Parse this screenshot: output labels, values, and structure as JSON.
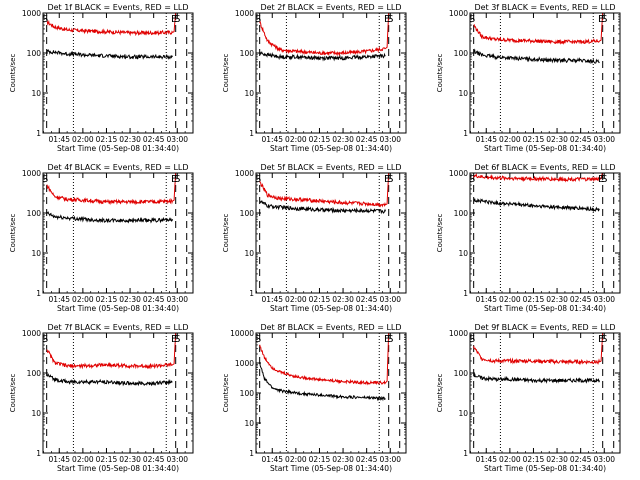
{
  "figure": {
    "ylabel": "Counts/sec",
    "xlabel": "Start Time (05-Sep-08 01:34:40)",
    "series_names": {
      "events": "Events",
      "lld": "LLD"
    },
    "colors": {
      "events": "#000000",
      "lld": "#e00000",
      "axis": "#000000",
      "background": "#ffffff"
    },
    "y_scale": "log",
    "grid": false
  },
  "chart_data": [
    {
      "type": "line",
      "title": "Det 1f BLACK = Events, RED = LLD",
      "xlim": [
        "01:34:40",
        "03:10:00"
      ],
      "ylim": [
        1,
        1000
      ],
      "x_ticks": [
        "01:45",
        "02:00",
        "02:15",
        "02:30",
        "02:45",
        "03:00"
      ],
      "y_ticks": [
        "1",
        "10",
        "100",
        "1000"
      ],
      "markers": {
        "dashed": [
          "01:37",
          "02:59",
          "03:06"
        ],
        "dotted": [
          "01:54",
          "02:53"
        ],
        "labels": [
          {
            "text": "S",
            "x": "01:36"
          },
          {
            "text": "E",
            "x": "02:58"
          },
          {
            "text": "S",
            "x": "03:00"
          }
        ]
      },
      "series": [
        {
          "name": "LLD",
          "color": "#e00000",
          "x": [
            "01:37",
            "01:42",
            "01:50",
            "02:00",
            "02:15",
            "02:30",
            "02:45",
            "02:57",
            "02:58",
            "02:59"
          ],
          "y": [
            600,
            450,
            380,
            360,
            340,
            320,
            320,
            330,
            340,
            1100
          ]
        },
        {
          "name": "Events",
          "color": "#000000",
          "x": [
            "01:37",
            "01:42",
            "01:50",
            "02:00",
            "02:15",
            "02:30",
            "02:45",
            "02:57"
          ],
          "y": [
            110,
            105,
            95,
            90,
            85,
            80,
            80,
            80
          ]
        }
      ]
    },
    {
      "type": "line",
      "title": "Det 2f BLACK = Events, RED = LLD",
      "xlim": [
        "01:34:40",
        "03:10:00"
      ],
      "ylim": [
        1,
        1000
      ],
      "x_ticks": [
        "01:45",
        "02:00",
        "02:15",
        "02:30",
        "02:45",
        "03:00"
      ],
      "y_ticks": [
        "1",
        "10",
        "100",
        "1000"
      ],
      "markers": {
        "dashed": [
          "01:37",
          "02:59",
          "03:06"
        ],
        "dotted": [
          "01:54",
          "02:53"
        ],
        "labels": [
          {
            "text": "S",
            "x": "01:36"
          },
          {
            "text": "E",
            "x": "02:58"
          },
          {
            "text": "S",
            "x": "03:00"
          }
        ]
      },
      "series": [
        {
          "name": "LLD",
          "color": "#e00000",
          "x": [
            "01:37",
            "01:42",
            "01:50",
            "02:00",
            "02:15",
            "02:30",
            "02:45",
            "02:57",
            "02:58",
            "02:59"
          ],
          "y": [
            600,
            200,
            120,
            110,
            100,
            100,
            110,
            130,
            140,
            1100
          ]
        },
        {
          "name": "Events",
          "color": "#000000",
          "x": [
            "01:37",
            "01:42",
            "01:50",
            "02:00",
            "02:15",
            "02:30",
            "02:45",
            "02:57"
          ],
          "y": [
            100,
            90,
            80,
            80,
            75,
            75,
            80,
            85
          ]
        }
      ]
    },
    {
      "type": "line",
      "title": "Det 3f BLACK = Events, RED = LLD",
      "xlim": [
        "01:34:40",
        "03:10:00"
      ],
      "ylim": [
        1,
        1000
      ],
      "x_ticks": [
        "01:45",
        "02:00",
        "02:15",
        "02:30",
        "02:45",
        "03:00"
      ],
      "y_ticks": [
        "1",
        "10",
        "100",
        "1000"
      ],
      "markers": {
        "dashed": [
          "01:37",
          "02:59",
          "03:06"
        ],
        "dotted": [
          "01:54",
          "02:53"
        ],
        "labels": [
          {
            "text": "S",
            "x": "01:36"
          },
          {
            "text": "E",
            "x": "02:58"
          },
          {
            "text": "S",
            "x": "03:00"
          }
        ]
      },
      "series": [
        {
          "name": "LLD",
          "color": "#e00000",
          "x": [
            "01:37",
            "01:42",
            "01:50",
            "02:00",
            "02:15",
            "02:30",
            "02:45",
            "02:57",
            "02:58",
            "02:59"
          ],
          "y": [
            500,
            260,
            220,
            210,
            200,
            190,
            190,
            200,
            210,
            1100
          ]
        },
        {
          "name": "Events",
          "color": "#000000",
          "x": [
            "01:37",
            "01:42",
            "01:50",
            "02:00",
            "02:15",
            "02:30",
            "02:45",
            "02:57"
          ],
          "y": [
            110,
            90,
            80,
            75,
            70,
            65,
            65,
            60
          ]
        }
      ]
    },
    {
      "type": "line",
      "title": "Det 4f BLACK = Events, RED = LLD",
      "xlim": [
        "01:34:40",
        "03:10:00"
      ],
      "ylim": [
        1,
        1000
      ],
      "x_ticks": [
        "01:45",
        "02:00",
        "02:15",
        "02:30",
        "02:45",
        "03:00"
      ],
      "y_ticks": [
        "1",
        "10",
        "100",
        "1000"
      ],
      "markers": {
        "dashed": [
          "01:37",
          "02:59",
          "03:06"
        ],
        "dotted": [
          "01:54",
          "02:53"
        ],
        "labels": [
          {
            "text": "S",
            "x": "01:36"
          },
          {
            "text": "E",
            "x": "02:58"
          },
          {
            "text": "S",
            "x": "03:00"
          }
        ]
      },
      "series": [
        {
          "name": "LLD",
          "color": "#e00000",
          "x": [
            "01:37",
            "01:42",
            "01:50",
            "02:00",
            "02:15",
            "02:30",
            "02:45",
            "02:57",
            "02:58",
            "02:59"
          ],
          "y": [
            500,
            260,
            220,
            210,
            190,
            190,
            190,
            200,
            210,
            1100
          ]
        },
        {
          "name": "Events",
          "color": "#000000",
          "x": [
            "01:37",
            "01:42",
            "01:50",
            "02:00",
            "02:15",
            "02:30",
            "02:45",
            "02:57"
          ],
          "y": [
            100,
            80,
            75,
            70,
            65,
            65,
            65,
            70
          ]
        }
      ]
    },
    {
      "type": "line",
      "title": "Det 5f BLACK = Events, RED = LLD",
      "xlim": [
        "01:34:40",
        "03:10:00"
      ],
      "ylim": [
        1,
        1000
      ],
      "x_ticks": [
        "01:45",
        "02:00",
        "02:15",
        "02:30",
        "02:45",
        "03:00"
      ],
      "y_ticks": [
        "1",
        "10",
        "100",
        "1000"
      ],
      "markers": {
        "dashed": [
          "01:37",
          "02:59",
          "03:06"
        ],
        "dotted": [
          "01:54",
          "02:53"
        ],
        "labels": [
          {
            "text": "S",
            "x": "01:36"
          },
          {
            "text": "E",
            "x": "02:58"
          },
          {
            "text": "S",
            "x": "03:00"
          }
        ]
      },
      "series": [
        {
          "name": "LLD",
          "color": "#e00000",
          "x": [
            "01:37",
            "01:42",
            "01:50",
            "02:00",
            "02:15",
            "02:30",
            "02:45",
            "02:57",
            "02:58",
            "02:59"
          ],
          "y": [
            600,
            280,
            230,
            220,
            200,
            180,
            170,
            160,
            170,
            1100
          ]
        },
        {
          "name": "Events",
          "color": "#000000",
          "x": [
            "01:37",
            "01:42",
            "01:50",
            "02:00",
            "02:15",
            "02:30",
            "02:45",
            "02:57"
          ],
          "y": [
            200,
            150,
            140,
            130,
            120,
            115,
            115,
            110
          ]
        }
      ]
    },
    {
      "type": "line",
      "title": "Det 6f BLACK = Events, RED = LLD",
      "xlim": [
        "01:34:40",
        "03:10:00"
      ],
      "ylim": [
        1,
        1000
      ],
      "x_ticks": [
        "01:45",
        "02:00",
        "02:15",
        "02:30",
        "02:45",
        "03:00"
      ],
      "y_ticks": [
        "1",
        "10",
        "100",
        "1000"
      ],
      "markers": {
        "dashed": [
          "01:37",
          "02:59",
          "03:06"
        ],
        "dotted": [
          "01:54",
          "02:53"
        ],
        "labels": [
          {
            "text": "S",
            "x": "01:36"
          },
          {
            "text": "E",
            "x": "02:58"
          },
          {
            "text": "S",
            "x": "03:00"
          }
        ]
      },
      "series": [
        {
          "name": "LLD",
          "color": "#e00000",
          "x": [
            "01:37",
            "01:42",
            "01:50",
            "02:00",
            "02:15",
            "02:30",
            "02:45",
            "02:57",
            "02:58",
            "02:59"
          ],
          "y": [
            850,
            800,
            760,
            740,
            720,
            700,
            700,
            700,
            720,
            1100
          ]
        },
        {
          "name": "Events",
          "color": "#000000",
          "x": [
            "01:37",
            "01:42",
            "01:50",
            "02:00",
            "02:15",
            "02:30",
            "02:45",
            "02:57"
          ],
          "y": [
            210,
            200,
            180,
            170,
            150,
            140,
            130,
            120
          ]
        }
      ]
    },
    {
      "type": "line",
      "title": "Det 7f BLACK = Events, RED = LLD",
      "xlim": [
        "01:34:40",
        "03:10:00"
      ],
      "ylim": [
        1,
        1000
      ],
      "x_ticks": [
        "01:45",
        "02:00",
        "02:15",
        "02:30",
        "02:45",
        "03:00"
      ],
      "y_ticks": [
        "1",
        "10",
        "100",
        "1000"
      ],
      "markers": {
        "dashed": [
          "01:37",
          "02:59",
          "03:06"
        ],
        "dotted": [
          "01:54",
          "02:53"
        ],
        "labels": [
          {
            "text": "S",
            "x": "01:36"
          },
          {
            "text": "E",
            "x": "02:58"
          },
          {
            "text": "S",
            "x": "03:00"
          }
        ]
      },
      "series": [
        {
          "name": "LLD",
          "color": "#e00000",
          "x": [
            "01:37",
            "01:42",
            "01:50",
            "02:00",
            "02:15",
            "02:30",
            "02:45",
            "02:57",
            "02:58",
            "02:59"
          ],
          "y": [
            400,
            180,
            150,
            150,
            160,
            150,
            150,
            160,
            170,
            1100
          ]
        },
        {
          "name": "Events",
          "color": "#000000",
          "x": [
            "01:37",
            "01:42",
            "01:50",
            "02:00",
            "02:15",
            "02:30",
            "02:45",
            "02:57"
          ],
          "y": [
            90,
            70,
            60,
            60,
            60,
            55,
            55,
            60
          ]
        }
      ]
    },
    {
      "type": "line",
      "title": "Det 8f BLACK = Events, RED = LLD",
      "xlim": [
        "01:34:40",
        "03:10:00"
      ],
      "ylim": [
        1,
        10000
      ],
      "x_ticks": [
        "01:45",
        "02:00",
        "02:15",
        "02:30",
        "02:45",
        "03:00"
      ],
      "y_ticks": [
        "1",
        "10",
        "100",
        "1000",
        "10000"
      ],
      "markers": {
        "dashed": [
          "01:37",
          "02:59",
          "03:06"
        ],
        "dotted": [
          "01:54",
          "02:53"
        ],
        "labels": [
          {
            "text": "S",
            "x": "01:36"
          },
          {
            "text": "E",
            "x": "02:58"
          },
          {
            "text": "S",
            "x": "03:00"
          }
        ]
      },
      "series": [
        {
          "name": "LLD",
          "color": "#e00000",
          "x": [
            "01:37",
            "01:40",
            "01:45",
            "01:50",
            "02:00",
            "02:15",
            "02:30",
            "02:45",
            "02:57",
            "02:58",
            "02:59"
          ],
          "y": [
            4000,
            1500,
            700,
            500,
            350,
            280,
            240,
            220,
            220,
            250,
            12000
          ]
        },
        {
          "name": "Events",
          "color": "#000000",
          "x": [
            "01:37",
            "01:40",
            "01:45",
            "01:50",
            "02:00",
            "02:15",
            "02:30",
            "02:45",
            "02:57"
          ],
          "y": [
            1000,
            300,
            150,
            120,
            100,
            85,
            75,
            70,
            65
          ]
        }
      ]
    },
    {
      "type": "line",
      "title": "Det 9f BLACK = Events, RED = LLD",
      "xlim": [
        "01:34:40",
        "03:10:00"
      ],
      "ylim": [
        1,
        1000
      ],
      "x_ticks": [
        "01:45",
        "02:00",
        "02:15",
        "02:30",
        "02:45",
        "03:00"
      ],
      "y_ticks": [
        "1",
        "10",
        "100",
        "1000"
      ],
      "markers": {
        "dashed": [
          "01:37",
          "02:59",
          "03:06"
        ],
        "dotted": [
          "01:54",
          "02:53"
        ],
        "labels": [
          {
            "text": "S",
            "x": "01:36"
          },
          {
            "text": "E",
            "x": "02:58"
          },
          {
            "text": "S",
            "x": "03:00"
          }
        ]
      },
      "series": [
        {
          "name": "LLD",
          "color": "#e00000",
          "x": [
            "01:37",
            "01:42",
            "01:50",
            "02:00",
            "02:15",
            "02:30",
            "02:45",
            "02:57",
            "02:58",
            "02:59"
          ],
          "y": [
            450,
            230,
            200,
            200,
            200,
            190,
            190,
            190,
            200,
            1100
          ]
        },
        {
          "name": "Events",
          "color": "#000000",
          "x": [
            "01:37",
            "01:42",
            "01:50",
            "02:00",
            "02:15",
            "02:30",
            "02:45",
            "02:57"
          ],
          "y": [
            90,
            75,
            70,
            70,
            65,
            65,
            65,
            65
          ]
        }
      ]
    }
  ]
}
